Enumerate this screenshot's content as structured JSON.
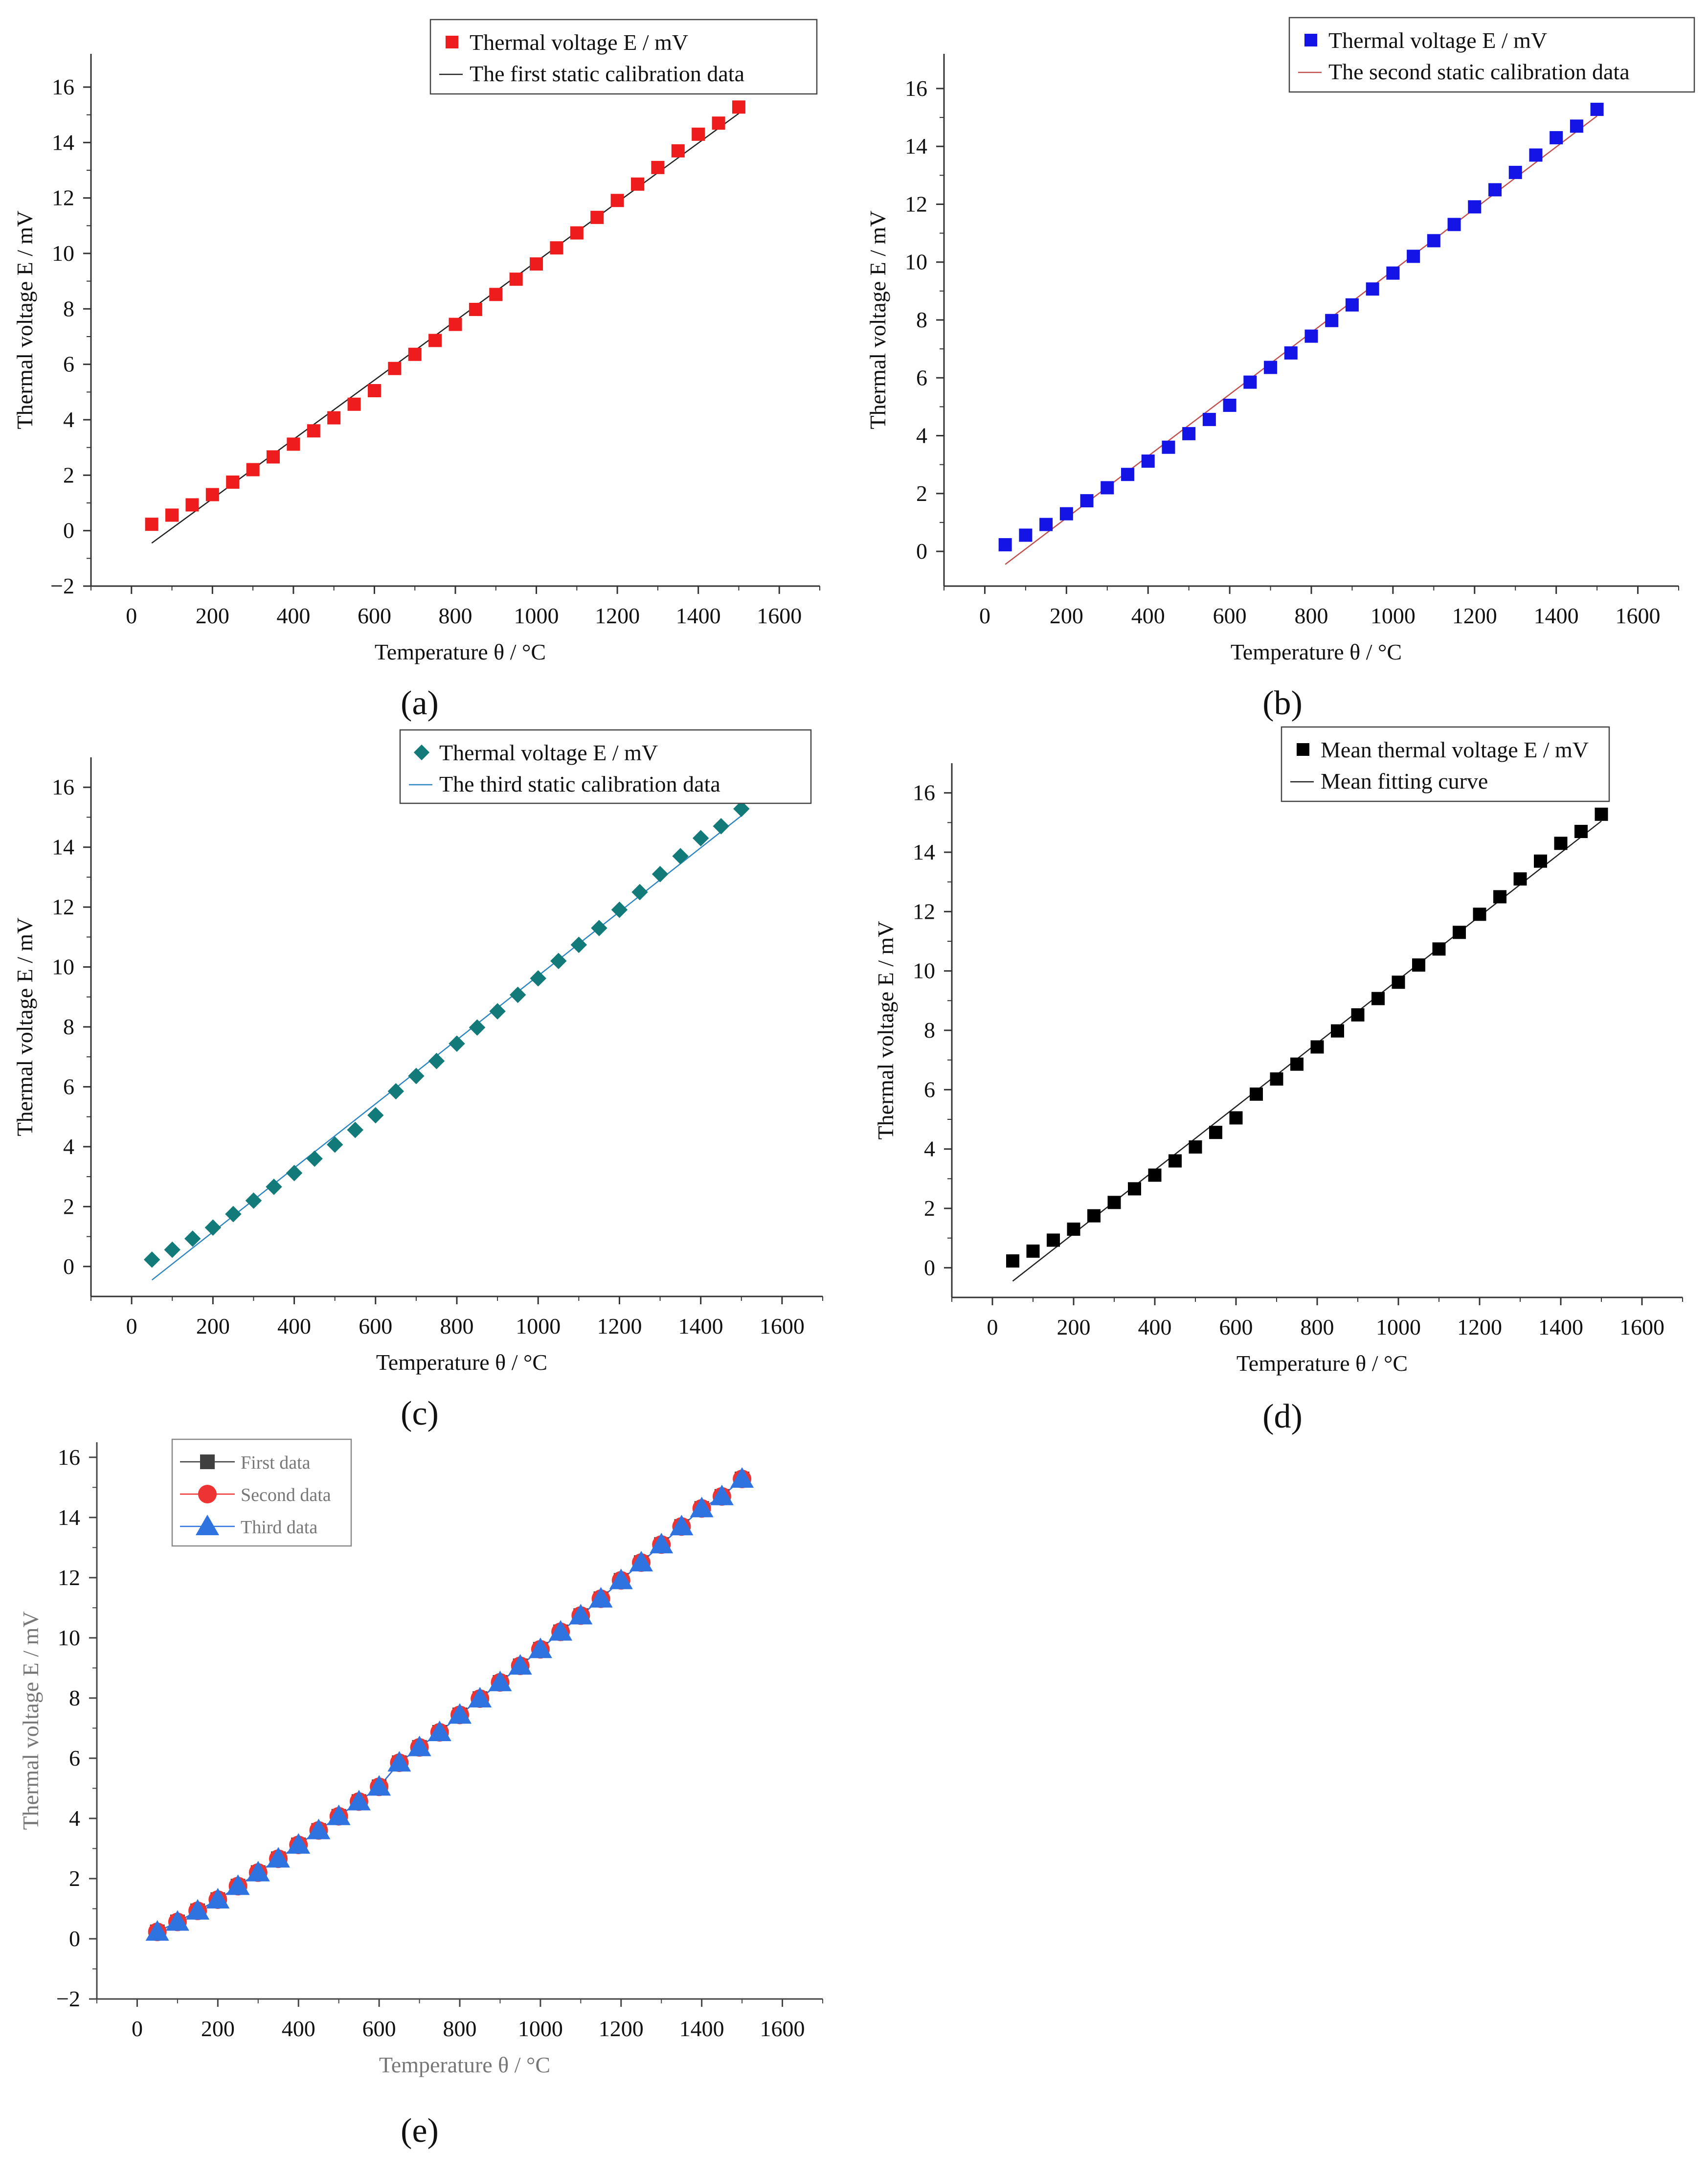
{
  "figure": {
    "panels": [
      {
        "tag": "(a)",
        "marker": "square",
        "marker_color": "#ee1c1c",
        "line_color": "#222222",
        "legend": [
          "Thermal voltage E / mV",
          "The first static calibration data"
        ]
      },
      {
        "tag": "(b)",
        "marker": "square",
        "marker_color": "#1414e6",
        "line_color": "#c0504d",
        "legend": [
          "Thermal voltage E / mV",
          "The second static calibration data"
        ]
      },
      {
        "tag": "(c)",
        "marker": "diamond",
        "marker_color": "#127a78",
        "line_color": "#2e86c1",
        "legend": [
          "Thermal voltage E / mV",
          "The third static calibration data"
        ]
      },
      {
        "tag": "(d)",
        "marker": "square",
        "marker_color": "#000000",
        "line_color": "#222222",
        "legend": [
          "Mean thermal voltage E / mV",
          "Mean fitting curve"
        ]
      },
      {
        "tag": "(e)",
        "marker": "combo",
        "legend": [
          "First data",
          "Second data",
          "Third data"
        ],
        "series_colors": [
          "#404040",
          "#ee3333",
          "#2f73e0"
        ]
      }
    ]
  },
  "chart_data": [
    {
      "type": "scatter",
      "title": "",
      "xlabel": "Temperature θ  / °C",
      "ylabel": "Thermal voltage E / mV",
      "xlim": [
        -100,
        1700
      ],
      "ylim": [
        -2,
        17.2
      ],
      "xticks": [
        0,
        200,
        400,
        600,
        800,
        1000,
        1200,
        1400,
        1600
      ],
      "yticks": [
        -2,
        0,
        2,
        4,
        6,
        8,
        10,
        12,
        14,
        16
      ],
      "legend_position": "top-right",
      "series": [
        {
          "name": "Thermal voltage E / mV",
          "x": [
            50,
            100,
            150,
            200,
            250,
            300,
            350,
            400,
            450,
            500,
            550,
            600,
            650,
            700,
            750,
            800,
            850,
            900,
            950,
            1000,
            1050,
            1100,
            1150,
            1200,
            1250,
            1300,
            1350,
            1400,
            1450,
            1500
          ],
          "y": [
            0.23,
            0.56,
            0.93,
            1.3,
            1.75,
            2.2,
            2.66,
            3.12,
            3.6,
            4.07,
            4.56,
            5.05,
            5.85,
            6.36,
            6.86,
            7.44,
            7.98,
            8.52,
            9.07,
            9.62,
            10.2,
            10.74,
            11.3,
            11.91,
            12.5,
            13.1,
            13.7,
            14.3,
            14.7,
            15.28
          ]
        },
        {
          "name": "The first static calibration data",
          "kind": "line",
          "x": [
            50,
            1500
          ],
          "y": [
            -0.45,
            15.05
          ]
        }
      ]
    },
    {
      "type": "scatter",
      "title": "",
      "xlabel": "Temperature θ  / °C",
      "ylabel": "Thermal voltage E / mV",
      "xlim": [
        -100,
        1700
      ],
      "ylim": [
        -1.2,
        17.2
      ],
      "xticks": [
        0,
        200,
        400,
        600,
        800,
        1000,
        1200,
        1400,
        1600
      ],
      "yticks": [
        0,
        2,
        4,
        6,
        8,
        10,
        12,
        14,
        16
      ],
      "legend_position": "top-right",
      "series": [
        {
          "name": "Thermal voltage E / mV",
          "x": [
            50,
            100,
            150,
            200,
            250,
            300,
            350,
            400,
            450,
            500,
            550,
            600,
            650,
            700,
            750,
            800,
            850,
            900,
            950,
            1000,
            1050,
            1100,
            1150,
            1200,
            1250,
            1300,
            1350,
            1400,
            1450,
            1500
          ],
          "y": [
            0.23,
            0.56,
            0.93,
            1.3,
            1.75,
            2.2,
            2.66,
            3.12,
            3.6,
            4.07,
            4.56,
            5.05,
            5.85,
            6.36,
            6.86,
            7.44,
            7.98,
            8.52,
            9.07,
            9.62,
            10.2,
            10.74,
            11.3,
            11.91,
            12.5,
            13.1,
            13.7,
            14.3,
            14.7,
            15.28
          ]
        },
        {
          "name": "The second static calibration data",
          "kind": "line",
          "x": [
            50,
            1500
          ],
          "y": [
            -0.45,
            15.05
          ]
        }
      ]
    },
    {
      "type": "scatter",
      "title": "",
      "xlabel": "Temperature θ  / °C",
      "ylabel": "Thermal voltage E / mV",
      "xlim": [
        -100,
        1700
      ],
      "ylim": [
        -1,
        17
      ],
      "xticks": [
        0,
        200,
        400,
        600,
        800,
        1000,
        1200,
        1400,
        1600
      ],
      "yticks": [
        0,
        2,
        4,
        6,
        8,
        10,
        12,
        14,
        16
      ],
      "legend_position": "top-right",
      "series": [
        {
          "name": "Thermal voltage E / mV",
          "x": [
            50,
            100,
            150,
            200,
            250,
            300,
            350,
            400,
            450,
            500,
            550,
            600,
            650,
            700,
            750,
            800,
            850,
            900,
            950,
            1000,
            1050,
            1100,
            1150,
            1200,
            1250,
            1300,
            1350,
            1400,
            1450,
            1500
          ],
          "y": [
            0.23,
            0.56,
            0.93,
            1.3,
            1.75,
            2.2,
            2.66,
            3.12,
            3.6,
            4.07,
            4.56,
            5.05,
            5.85,
            6.36,
            6.86,
            7.44,
            7.98,
            8.52,
            9.07,
            9.62,
            10.2,
            10.74,
            11.3,
            11.91,
            12.5,
            13.1,
            13.7,
            14.3,
            14.7,
            15.28
          ]
        },
        {
          "name": "The third static calibration data",
          "kind": "line",
          "x": [
            50,
            1500
          ],
          "y": [
            -0.45,
            15.05
          ]
        }
      ]
    },
    {
      "type": "scatter",
      "title": "",
      "xlabel": "Temperature θ  / °C",
      "ylabel": "Thermal voltage E / mV",
      "xlim": [
        -100,
        1700
      ],
      "ylim": [
        -1,
        17
      ],
      "xticks": [
        0,
        200,
        400,
        600,
        800,
        1000,
        1200,
        1400,
        1600
      ],
      "yticks": [
        0,
        2,
        4,
        6,
        8,
        10,
        12,
        14,
        16
      ],
      "legend_position": "top-right",
      "series": [
        {
          "name": "Mean thermal voltage E / mV",
          "x": [
            50,
            100,
            150,
            200,
            250,
            300,
            350,
            400,
            450,
            500,
            550,
            600,
            650,
            700,
            750,
            800,
            850,
            900,
            950,
            1000,
            1050,
            1100,
            1150,
            1200,
            1250,
            1300,
            1350,
            1400,
            1450,
            1500
          ],
          "y": [
            0.23,
            0.56,
            0.93,
            1.3,
            1.75,
            2.2,
            2.66,
            3.12,
            3.6,
            4.07,
            4.56,
            5.05,
            5.85,
            6.36,
            6.86,
            7.44,
            7.98,
            8.52,
            9.07,
            9.62,
            10.2,
            10.74,
            11.3,
            11.91,
            12.5,
            13.1,
            13.7,
            14.3,
            14.7,
            15.28
          ]
        },
        {
          "name": "Mean fitting curve",
          "kind": "line",
          "x": [
            50,
            1500
          ],
          "y": [
            -0.45,
            15.05
          ]
        }
      ]
    },
    {
      "type": "line",
      "title": "",
      "xlabel": "Temperature θ  / °C",
      "ylabel": "Thermal voltage E / mV",
      "xlim": [
        -100,
        1700
      ],
      "ylim": [
        -2,
        16.5
      ],
      "xticks": [
        0,
        200,
        400,
        600,
        800,
        1000,
        1200,
        1400,
        1600
      ],
      "yticks": [
        -2,
        0,
        2,
        4,
        6,
        8,
        10,
        12,
        14,
        16
      ],
      "legend_position": "top-left",
      "series": [
        {
          "name": "First data",
          "x": [
            50,
            100,
            150,
            200,
            250,
            300,
            350,
            400,
            450,
            500,
            550,
            600,
            650,
            700,
            750,
            800,
            850,
            900,
            950,
            1000,
            1050,
            1100,
            1150,
            1200,
            1250,
            1300,
            1350,
            1400,
            1450,
            1500
          ],
          "y": [
            0.23,
            0.56,
            0.93,
            1.3,
            1.75,
            2.2,
            2.66,
            3.12,
            3.6,
            4.07,
            4.56,
            5.05,
            5.85,
            6.36,
            6.86,
            7.44,
            7.98,
            8.52,
            9.07,
            9.62,
            10.2,
            10.74,
            11.3,
            11.91,
            12.5,
            13.1,
            13.7,
            14.3,
            14.7,
            15.28
          ]
        },
        {
          "name": "Second data",
          "x": [
            50,
            100,
            150,
            200,
            250,
            300,
            350,
            400,
            450,
            500,
            550,
            600,
            650,
            700,
            750,
            800,
            850,
            900,
            950,
            1000,
            1050,
            1100,
            1150,
            1200,
            1250,
            1300,
            1350,
            1400,
            1450,
            1500
          ],
          "y": [
            0.23,
            0.56,
            0.93,
            1.3,
            1.75,
            2.2,
            2.66,
            3.12,
            3.6,
            4.07,
            4.56,
            5.05,
            5.85,
            6.36,
            6.86,
            7.44,
            7.98,
            8.52,
            9.07,
            9.62,
            10.2,
            10.74,
            11.3,
            11.91,
            12.5,
            13.1,
            13.7,
            14.3,
            14.7,
            15.28
          ]
        },
        {
          "name": "Third data",
          "x": [
            50,
            100,
            150,
            200,
            250,
            300,
            350,
            400,
            450,
            500,
            550,
            600,
            650,
            700,
            750,
            800,
            850,
            900,
            950,
            1000,
            1050,
            1100,
            1150,
            1200,
            1250,
            1300,
            1350,
            1400,
            1450,
            1500
          ],
          "y": [
            0.23,
            0.56,
            0.93,
            1.3,
            1.75,
            2.2,
            2.66,
            3.12,
            3.6,
            4.07,
            4.56,
            5.05,
            5.85,
            6.36,
            6.86,
            7.44,
            7.98,
            8.52,
            9.07,
            9.62,
            10.2,
            10.74,
            11.3,
            11.91,
            12.5,
            13.1,
            13.7,
            14.3,
            14.7,
            15.28
          ]
        }
      ]
    }
  ]
}
